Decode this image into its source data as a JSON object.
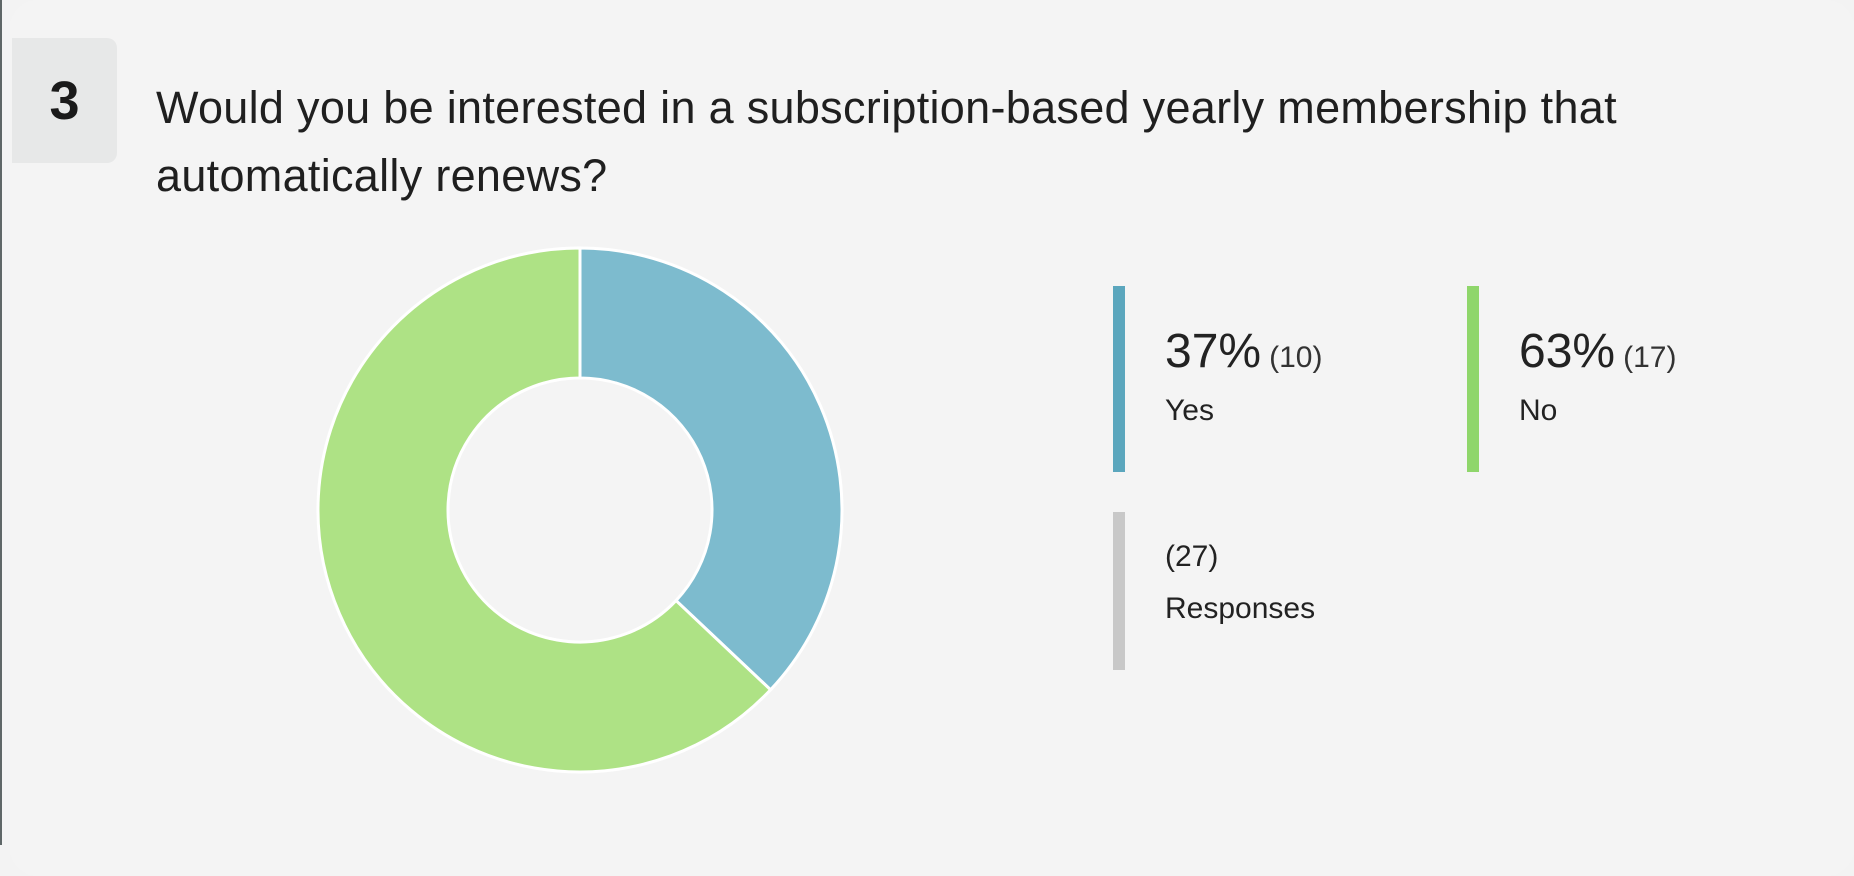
{
  "question": {
    "number": "3",
    "text": "Would you be interested in a subscription-based yearly membership that automatically renews?"
  },
  "legend": {
    "yes": {
      "percent": "37%",
      "count": "(10)",
      "label": "Yes",
      "color": "#5ba6bd"
    },
    "no": {
      "percent": "63%",
      "count": "(17)",
      "label": "No",
      "color": "#8fd66b"
    },
    "responses": {
      "count": "(27)",
      "label": "Responses",
      "color": "#c8c8c8"
    }
  },
  "colors": {
    "yes_slice": "#7dbbce",
    "no_slice": "#aee285"
  },
  "chart_data": {
    "type": "pie",
    "categories": [
      "Yes",
      "No"
    ],
    "values": [
      10,
      17
    ],
    "percentages": [
      37,
      63
    ],
    "total_responses": 27
  }
}
